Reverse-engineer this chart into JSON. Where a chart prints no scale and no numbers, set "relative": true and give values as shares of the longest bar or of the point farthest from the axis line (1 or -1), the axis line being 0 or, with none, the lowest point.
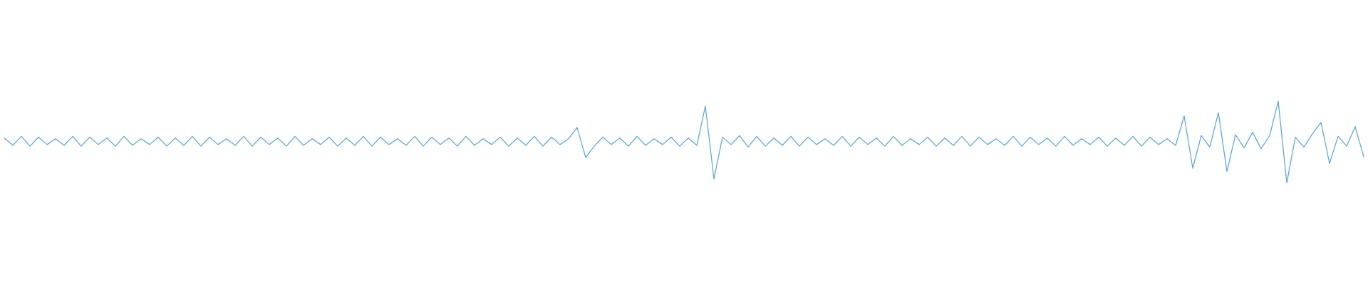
{
  "chart_data": {
    "type": "line",
    "relative": true,
    "categories": [
      null,
      null,
      null,
      null,
      null,
      null,
      null,
      null,
      null,
      null,
      null,
      null,
      null,
      null,
      null,
      null,
      null,
      null,
      null,
      null,
      null,
      null,
      null,
      null,
      null,
      null,
      null,
      null,
      null,
      null,
      null,
      null,
      null,
      null,
      null,
      null,
      null,
      null,
      null,
      null,
      null,
      null,
      null,
      null,
      null,
      null,
      null,
      null,
      null,
      null,
      null,
      null,
      null,
      null,
      null,
      null,
      null,
      null,
      null,
      null,
      null,
      null,
      null,
      null,
      null,
      null,
      null,
      null,
      null,
      null,
      null,
      null,
      null,
      null,
      null,
      null,
      null,
      null,
      null,
      null,
      null,
      null,
      null,
      null,
      null,
      null,
      null,
      null,
      null,
      null,
      null,
      null,
      null,
      null,
      null,
      null,
      null,
      null,
      null,
      null,
      null,
      null,
      null,
      null,
      null,
      null,
      null,
      null,
      null,
      null,
      null,
      null,
      null,
      null,
      null,
      null,
      null,
      null,
      null,
      null,
      null,
      null,
      null,
      null,
      null,
      null,
      null,
      null,
      null,
      null,
      null,
      null,
      null,
      null,
      null,
      null,
      null,
      null,
      null,
      null,
      null,
      null,
      null,
      null,
      null,
      null,
      null,
      null,
      null,
      null,
      null,
      null,
      null,
      null,
      null,
      null,
      null,
      null,
      null,
      null
    ],
    "series": [
      {
        "color": "#5aa5e0",
        "values": [
          0.55,
          0.46,
          0.57,
          0.45,
          0.56,
          0.47,
          0.54,
          0.46,
          0.57,
          0.45,
          0.56,
          0.47,
          0.55,
          0.45,
          0.57,
          0.46,
          0.54,
          0.47,
          0.56,
          0.45,
          0.55,
          0.46,
          0.57,
          0.45,
          0.56,
          0.47,
          0.54,
          0.46,
          0.57,
          0.45,
          0.56,
          0.47,
          0.55,
          0.45,
          0.57,
          0.46,
          0.54,
          0.47,
          0.56,
          0.45,
          0.55,
          0.46,
          0.57,
          0.45,
          0.56,
          0.47,
          0.54,
          0.46,
          0.57,
          0.45,
          0.56,
          0.47,
          0.55,
          0.45,
          0.57,
          0.46,
          0.54,
          0.47,
          0.56,
          0.45,
          0.55,
          0.46,
          0.57,
          0.45,
          0.56,
          0.47,
          0.54,
          0.68,
          0.31,
          0.45,
          0.56,
          0.47,
          0.55,
          0.45,
          0.57,
          0.46,
          0.54,
          0.47,
          0.56,
          0.45,
          0.55,
          0.46,
          0.94,
          0.05,
          0.56,
          0.47,
          0.58,
          0.44,
          0.57,
          0.45,
          0.55,
          0.46,
          0.57,
          0.45,
          0.56,
          0.47,
          0.54,
          0.46,
          0.57,
          0.45,
          0.56,
          0.47,
          0.55,
          0.45,
          0.57,
          0.46,
          0.54,
          0.47,
          0.56,
          0.45,
          0.55,
          0.46,
          0.57,
          0.45,
          0.56,
          0.47,
          0.54,
          0.46,
          0.57,
          0.45,
          0.56,
          0.47,
          0.55,
          0.45,
          0.57,
          0.46,
          0.54,
          0.47,
          0.56,
          0.45,
          0.55,
          0.46,
          0.57,
          0.45,
          0.56,
          0.47,
          0.54,
          0.46,
          0.82,
          0.18,
          0.58,
          0.44,
          0.86,
          0.14,
          0.59,
          0.43,
          0.62,
          0.42,
          0.58,
          1.0,
          0.0,
          0.56,
          0.44,
          0.6,
          0.74,
          0.24,
          0.57,
          0.45,
          0.69,
          0.32
        ]
      }
    ]
  }
}
